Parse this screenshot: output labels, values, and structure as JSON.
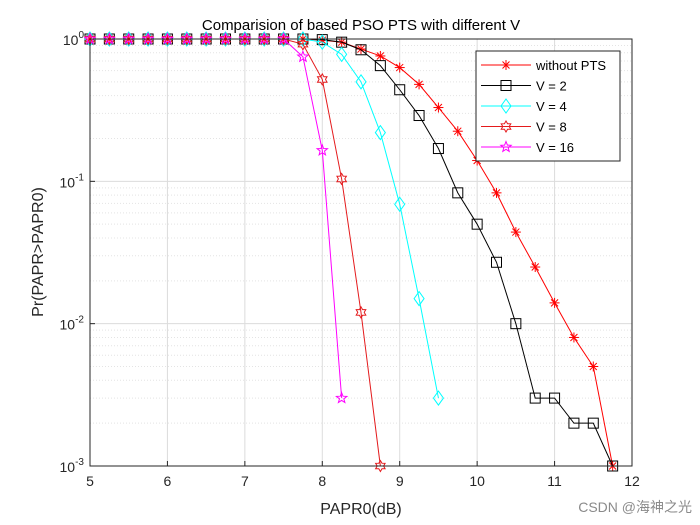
{
  "chart_data": {
    "type": "line",
    "title": "Comparision of based PSO PTS with different V",
    "xlabel": "PAPR0(dB)",
    "ylabel": "Pr(PAPR>PAPR0)",
    "xlim": [
      5,
      12
    ],
    "ylim": [
      0.001,
      1
    ],
    "yscale": "log",
    "grid": true,
    "legend_position": "top-right",
    "xticks": [
      "5",
      "6",
      "7",
      "8",
      "9",
      "10",
      "11",
      "12"
    ],
    "yticks": [
      {
        "base": "10",
        "exp": "0"
      },
      {
        "base": "10",
        "exp": "-1"
      },
      {
        "base": "10",
        "exp": "-2"
      },
      {
        "base": "10",
        "exp": "-3"
      }
    ],
    "series": [
      {
        "name": "without PTS",
        "color": "#ff0000",
        "marker": "asterisk",
        "x": [
          5,
          5.25,
          5.5,
          5.75,
          6,
          6.25,
          6.5,
          6.75,
          7,
          7.25,
          7.5,
          7.75,
          8,
          8.25,
          8.5,
          8.75,
          9,
          9.25,
          9.5,
          9.75,
          10,
          10.25,
          10.5,
          10.75,
          11,
          11.25,
          11.5,
          11.75
        ],
        "y": [
          1,
          1,
          1,
          1,
          1,
          1,
          1,
          1,
          1,
          1,
          1,
          1,
          0.98,
          0.95,
          0.85,
          0.76,
          0.63,
          0.48,
          0.33,
          0.225,
          0.14,
          0.083,
          0.044,
          0.025,
          0.014,
          0.008,
          0.005,
          0.001
        ]
      },
      {
        "name": "V = 2",
        "color": "#000000",
        "marker": "square",
        "x": [
          5,
          5.25,
          5.5,
          5.75,
          6,
          6.25,
          6.5,
          6.75,
          7,
          7.25,
          7.5,
          7.75,
          8,
          8.25,
          8.5,
          8.75,
          9,
          9.25,
          9.5,
          9.75,
          10,
          10.25,
          10.5,
          10.75,
          11,
          11.25,
          11.5,
          11.75
        ],
        "y": [
          1,
          1,
          1,
          1,
          1,
          1,
          1,
          1,
          1,
          1,
          1,
          1,
          0.99,
          0.95,
          0.84,
          0.65,
          0.44,
          0.29,
          0.17,
          0.083,
          0.05,
          0.027,
          0.01,
          0.003,
          0.003,
          0.002,
          0.002,
          0.001
        ]
      },
      {
        "name": "V = 4",
        "color": "#00ffff",
        "marker": "diamond",
        "x": [
          5,
          5.25,
          5.5,
          5.75,
          6,
          6.25,
          6.5,
          6.75,
          7,
          7.25,
          7.5,
          7.75,
          8,
          8.25,
          8.5,
          8.75,
          9,
          9.25,
          9.5
        ],
        "y": [
          1,
          1,
          1,
          1,
          1,
          1,
          1,
          1,
          1,
          1,
          1,
          1,
          0.95,
          0.78,
          0.5,
          0.22,
          0.069,
          0.015,
          0.003
        ]
      },
      {
        "name": "V = 8",
        "color": "#e41a1c",
        "marker": "hexagram",
        "x": [
          5,
          5.25,
          5.5,
          5.75,
          6,
          6.25,
          6.5,
          6.75,
          7,
          7.25,
          7.5,
          7.75,
          8,
          8.25,
          8.5,
          8.75
        ],
        "y": [
          1,
          1,
          1,
          1,
          1,
          1,
          1,
          1,
          1,
          1,
          1,
          0.92,
          0.52,
          0.104,
          0.012,
          0.001
        ]
      },
      {
        "name": "V = 16",
        "color": "#ff00ff",
        "marker": "pentagram",
        "x": [
          5,
          5.25,
          5.5,
          5.75,
          6,
          6.25,
          6.5,
          6.75,
          7,
          7.25,
          7.5,
          7.75,
          8,
          8.25
        ],
        "y": [
          1,
          1,
          1,
          1,
          1,
          1,
          1,
          1,
          1,
          1,
          1,
          0.75,
          0.165,
          0.003
        ]
      }
    ]
  },
  "watermark": "CSDN @海神之光"
}
